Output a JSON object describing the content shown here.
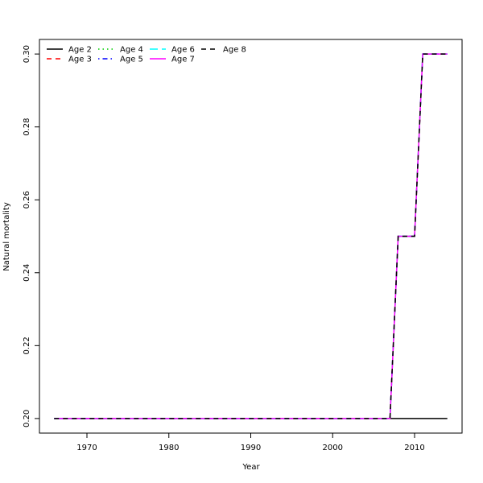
{
  "chart_data": {
    "type": "line",
    "title": "",
    "xlabel": "Year",
    "ylabel": "Natural mortality",
    "xlim": [
      1964.2,
      2015.8
    ],
    "ylim": [
      0.196,
      0.304
    ],
    "xticks": [
      1970,
      1980,
      1990,
      2000,
      2010
    ],
    "yticks": [
      0.2,
      0.22,
      0.24,
      0.26,
      0.28,
      0.3
    ],
    "ytick_labels": [
      "0.20",
      "0.22",
      "0.24",
      "0.26",
      "0.28",
      "0.30"
    ],
    "grid": false,
    "legend_position": "top-left",
    "x": [
      1966,
      2007,
      2008,
      2010,
      2011,
      2014
    ],
    "series": [
      {
        "name": "Age 2",
        "color": "#000000",
        "dash": "solid",
        "values": [
          0.2,
          0.2,
          0.2,
          0.2,
          0.2,
          0.2
        ]
      },
      {
        "name": "Age 3",
        "color": "#ff0000",
        "dash": "dashed",
        "values": [
          0.2,
          0.2,
          0.25,
          0.25,
          0.3,
          0.3
        ]
      },
      {
        "name": "Age 4",
        "color": "#00cd00",
        "dash": "dotted",
        "values": [
          0.2,
          0.2,
          0.25,
          0.25,
          0.3,
          0.3
        ]
      },
      {
        "name": "Age 5",
        "color": "#0000ff",
        "dash": "dotdash",
        "values": [
          0.2,
          0.2,
          0.25,
          0.25,
          0.3,
          0.3
        ]
      },
      {
        "name": "Age 6",
        "color": "#00ffff",
        "dash": "longdash",
        "values": [
          0.2,
          0.2,
          0.25,
          0.25,
          0.3,
          0.3
        ]
      },
      {
        "name": "Age 7",
        "color": "#ff00ff",
        "dash": "solid",
        "values": [
          0.2,
          0.2,
          0.25,
          0.25,
          0.3,
          0.3
        ]
      },
      {
        "name": "Age 8",
        "color": "#000000",
        "dash": "dashed",
        "values": [
          0.2,
          0.2,
          0.25,
          0.25,
          0.3,
          0.3
        ]
      }
    ]
  }
}
